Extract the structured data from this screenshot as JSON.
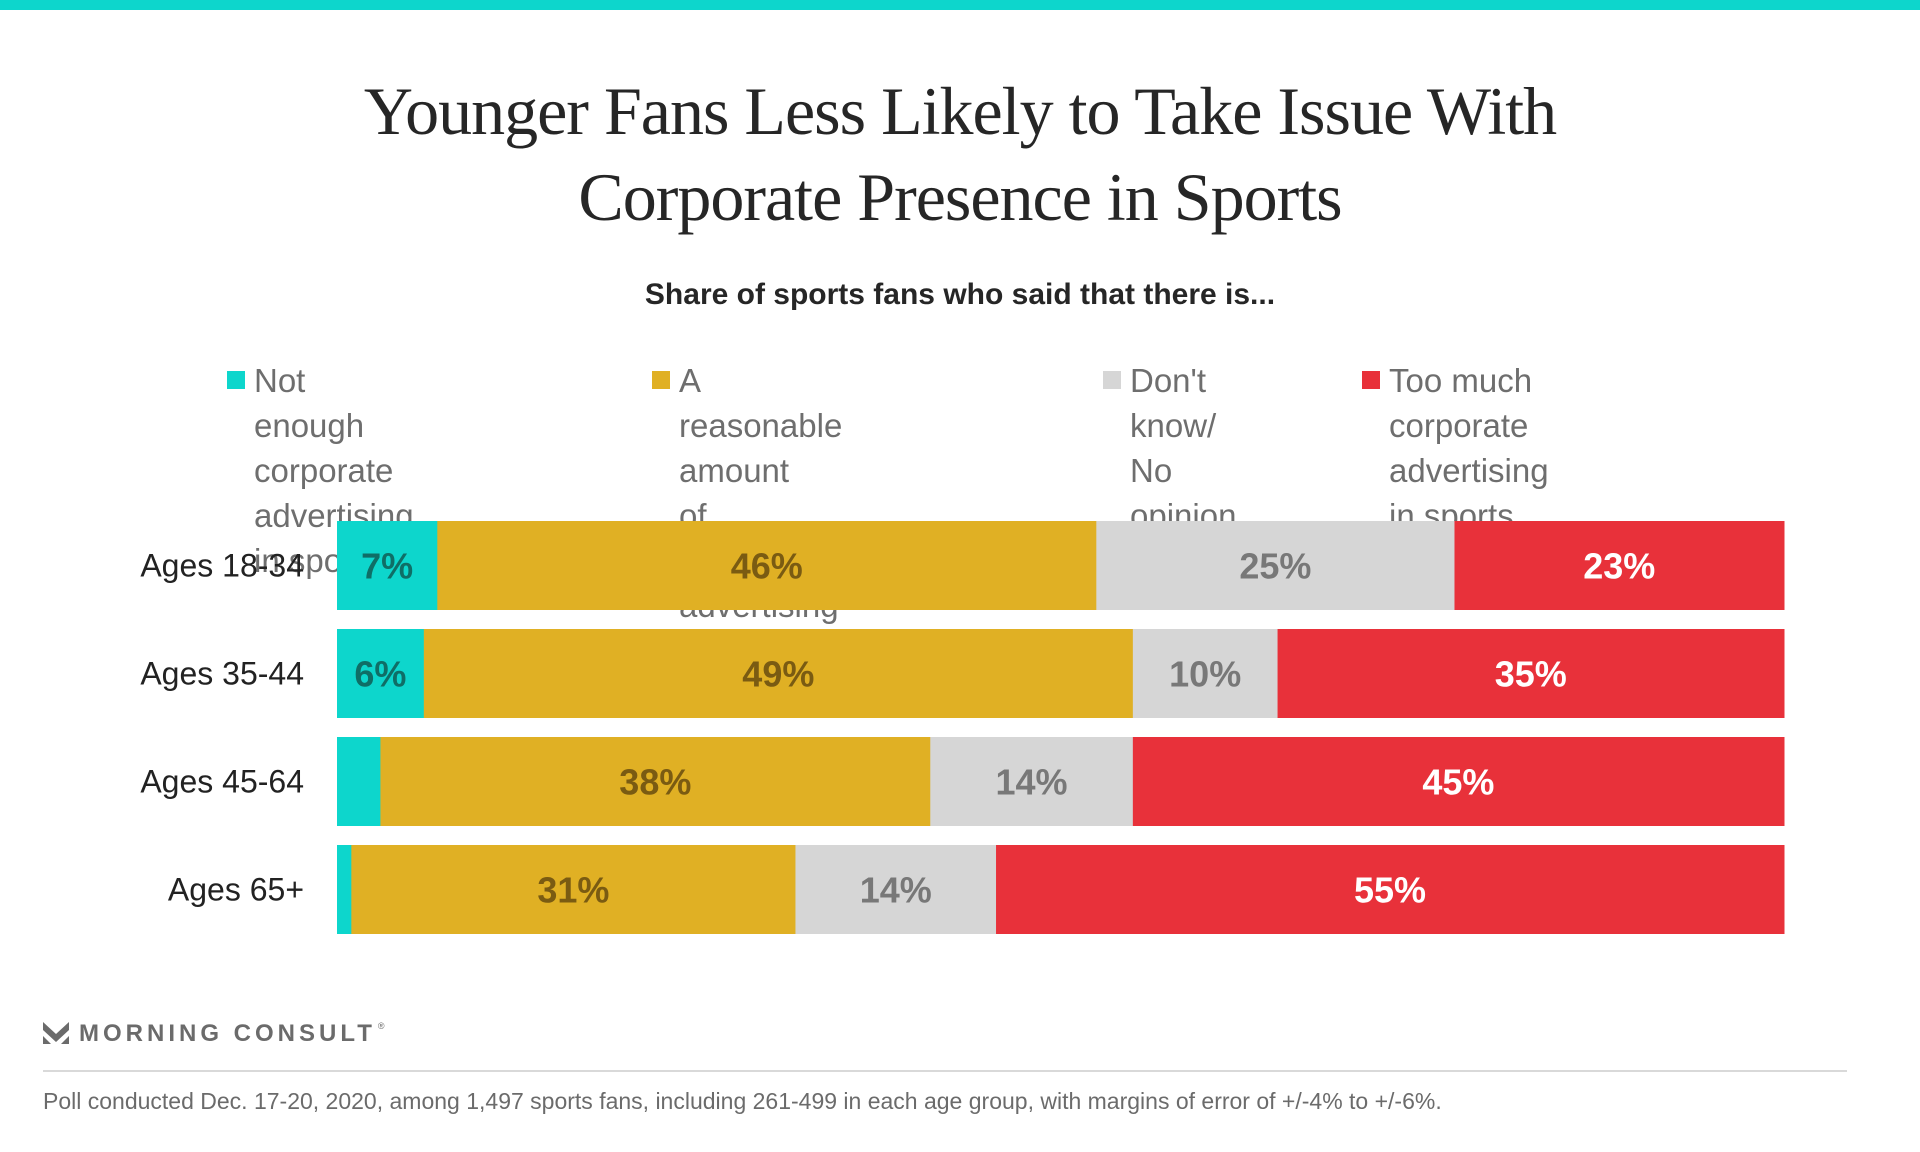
{
  "colors": {
    "accent": "#0DD6CC",
    "not_enough": "#0DD6CC",
    "reasonable": "#E0B024",
    "dont_know": "#D6D6D6",
    "too_much": "#E8313A"
  },
  "legend": [
    {
      "label": "Not enough corporate\nadvertising in sports",
      "color": "#0DD6CC"
    },
    {
      "label": "A reasonable amount\nof corporate advertising\nin sports",
      "color": "#E0B024"
    },
    {
      "label": "Don't know/\nNo opinion",
      "color": "#D6D6D6"
    },
    {
      "label": "Too much corporate\nadvertising in sports",
      "color": "#E8313A"
    }
  ],
  "chart_data": {
    "type": "bar",
    "orientation": "horizontal",
    "stacked": true,
    "title": "Younger Fans Less Likely to Take Issue With Corporate Presence in Sports",
    "title_lines": [
      "Younger Fans Less Likely to Take Issue With",
      "Corporate Presence in Sports"
    ],
    "subtitle": "Share of sports fans who said that there is...",
    "xlabel": "",
    "ylabel": "",
    "xlim": [
      0,
      100
    ],
    "grid": false,
    "legend_position": "top",
    "categories": [
      "Ages 18-34",
      "Ages 35-44",
      "Ages 45-64",
      "Ages 65+"
    ],
    "series": [
      {
        "name": "Not enough corporate advertising in sports",
        "values": [
          7,
          6,
          3,
          1
        ],
        "labels": [
          "7%",
          "6%",
          "",
          ""
        ],
        "color": "#0DD6CC",
        "label_color": "#0F6E66"
      },
      {
        "name": "A reasonable amount of corporate advertising in sports",
        "values": [
          46,
          49,
          38,
          31
        ],
        "labels": [
          "46%",
          "49%",
          "38%",
          "31%"
        ],
        "color": "#E0B024",
        "label_color": "#7A5B12"
      },
      {
        "name": "Don't know/No opinion",
        "values": [
          25,
          10,
          14,
          14
        ],
        "labels": [
          "25%",
          "10%",
          "14%",
          "14%"
        ],
        "color": "#D6D6D6",
        "label_color": "#787878"
      },
      {
        "name": "Too much corporate advertising in sports",
        "values": [
          23,
          35,
          45,
          55
        ],
        "labels": [
          "23%",
          "35%",
          "45%",
          "55%"
        ],
        "color": "#E8313A",
        "label_color": "#FFFFFF"
      }
    ]
  },
  "branding": {
    "logo_text": "MORNING CONSULT",
    "registered_mark": "®"
  },
  "footnote": "Poll conducted Dec. 17-20, 2020, among 1,497 sports fans, including 261-499 in each age group, with margins of error of +/-4% to +/-6%."
}
